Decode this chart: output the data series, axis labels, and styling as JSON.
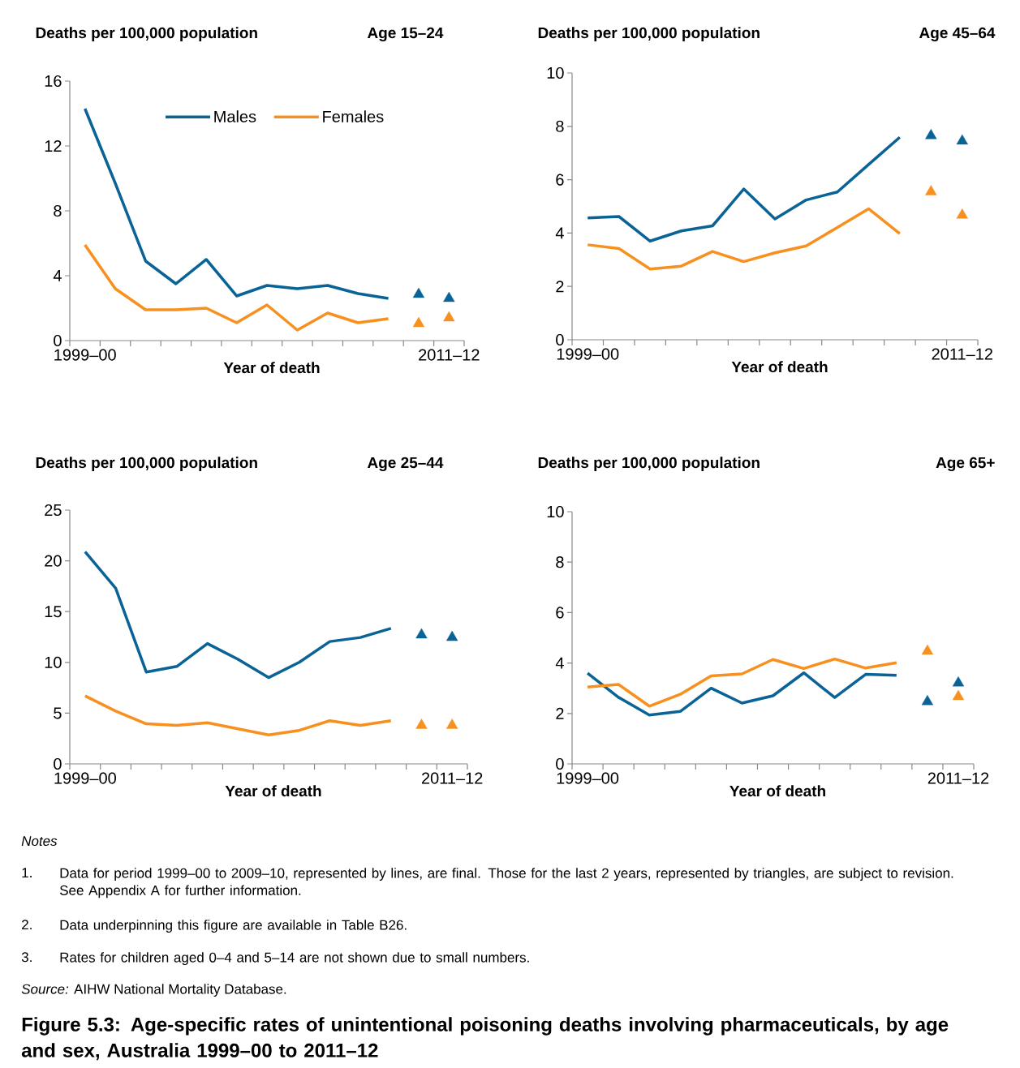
{
  "chart_data": [
    {
      "type": "line",
      "title": "Age 15–24",
      "ylabel": "Deaths per 100,000 population",
      "xlabel": "Year of death",
      "categories": [
        "1999–00",
        null,
        null,
        null,
        null,
        null,
        null,
        null,
        null,
        null,
        null,
        null,
        "2011–12"
      ],
      "ylim": [
        0,
        16
      ],
      "yticks": [
        0,
        4,
        8,
        12,
        16
      ],
      "legend": "top",
      "series": [
        {
          "name": "Males",
          "color": "#0a6396",
          "values": [
            14.3,
            9.7,
            4.9,
            3.5,
            5.0,
            2.75,
            3.4,
            3.2,
            3.4,
            2.9,
            2.6,
            null,
            null
          ]
        },
        {
          "name": "Females",
          "color": "#f7901e",
          "values": [
            5.9,
            3.2,
            1.9,
            1.9,
            2.0,
            1.1,
            2.2,
            0.65,
            1.7,
            1.1,
            1.35,
            null,
            null
          ]
        },
        {
          "type": "scatter",
          "marker": "triangle",
          "color": "#0a6396",
          "values": [
            null,
            null,
            null,
            null,
            null,
            null,
            null,
            null,
            null,
            null,
            null,
            2.85,
            2.6
          ]
        },
        {
          "type": "scatter",
          "marker": "triangle",
          "color": "#f7901e",
          "values": [
            null,
            null,
            null,
            null,
            null,
            null,
            null,
            null,
            null,
            null,
            null,
            1.05,
            1.4
          ]
        }
      ]
    },
    {
      "type": "line",
      "title": "Age 45–64",
      "ylabel": "Deaths per 100,000 population",
      "xlabel": "Year of death",
      "categories": [
        "1999–00",
        null,
        null,
        null,
        null,
        null,
        null,
        null,
        null,
        null,
        null,
        null,
        "2011–12"
      ],
      "ylim": [
        0,
        10
      ],
      "yticks": [
        0,
        2,
        4,
        6,
        8,
        10
      ],
      "series": [
        {
          "color": "#0a6396",
          "values": [
            4.57,
            4.62,
            3.7,
            4.08,
            4.27,
            5.65,
            4.53,
            5.24,
            5.54,
            6.57,
            7.59,
            null,
            null
          ]
        },
        {
          "color": "#f7901e",
          "values": [
            3.56,
            3.42,
            2.65,
            2.76,
            3.31,
            2.93,
            3.26,
            3.52,
            4.21,
            4.91,
            3.98,
            null,
            null
          ]
        },
        {
          "type": "scatter",
          "marker": "triangle",
          "color": "#0a6396",
          "values": [
            null,
            null,
            null,
            null,
            null,
            null,
            null,
            null,
            null,
            null,
            null,
            7.65,
            7.45
          ]
        },
        {
          "type": "scatter",
          "marker": "triangle",
          "color": "#f7901e",
          "values": [
            null,
            null,
            null,
            null,
            null,
            null,
            null,
            null,
            null,
            null,
            null,
            5.55,
            4.67
          ]
        }
      ]
    },
    {
      "type": "line",
      "title": "Age 25–44",
      "ylabel": "Deaths per 100,000 population",
      "xlabel": "Year of death",
      "categories": [
        "1999–00",
        null,
        null,
        null,
        null,
        null,
        null,
        null,
        null,
        null,
        null,
        null,
        "2011–12"
      ],
      "ylim": [
        0,
        25
      ],
      "yticks": [
        0,
        5,
        10,
        15,
        20,
        25
      ],
      "series": [
        {
          "color": "#0a6396",
          "values": [
            20.9,
            17.3,
            9.05,
            9.6,
            11.85,
            10.3,
            8.5,
            10.0,
            12.05,
            12.45,
            13.35,
            null,
            null
          ]
        },
        {
          "color": "#f7901e",
          "values": [
            6.7,
            5.2,
            3.95,
            3.8,
            4.05,
            3.45,
            2.85,
            3.3,
            4.25,
            3.8,
            4.25,
            null,
            null
          ]
        },
        {
          "type": "scatter",
          "marker": "triangle",
          "color": "#0a6396",
          "values": [
            null,
            null,
            null,
            null,
            null,
            null,
            null,
            null,
            null,
            null,
            null,
            12.7,
            12.45
          ]
        },
        {
          "type": "scatter",
          "marker": "triangle",
          "color": "#f7901e",
          "values": [
            null,
            null,
            null,
            null,
            null,
            null,
            null,
            null,
            null,
            null,
            null,
            3.8,
            3.8
          ]
        }
      ]
    },
    {
      "type": "line",
      "title": "Age 65+",
      "ylabel": "Deaths per 100,000 population",
      "xlabel": "Year of death",
      "categories": [
        "1999–00",
        null,
        null,
        null,
        null,
        null,
        null,
        null,
        null,
        null,
        null,
        null,
        "2011–12"
      ],
      "ylim": [
        0,
        10
      ],
      "yticks": [
        0,
        2,
        4,
        6,
        8,
        10
      ],
      "series": [
        {
          "color": "#0a6396",
          "values": [
            3.6,
            2.64,
            1.94,
            2.08,
            3.0,
            2.41,
            2.7,
            3.61,
            2.63,
            3.55,
            3.51,
            null,
            null
          ]
        },
        {
          "color": "#f7901e",
          "values": [
            3.05,
            3.15,
            2.29,
            2.76,
            3.49,
            3.57,
            4.14,
            3.78,
            4.16,
            3.8,
            4.01,
            null,
            null
          ]
        },
        {
          "type": "scatter",
          "marker": "triangle",
          "color": "#0a6396",
          "values": [
            null,
            null,
            null,
            null,
            null,
            null,
            null,
            null,
            null,
            null,
            null,
            2.47,
            3.21
          ]
        },
        {
          "type": "scatter",
          "marker": "triangle",
          "color": "#f7901e",
          "values": [
            null,
            null,
            null,
            null,
            null,
            null,
            null,
            null,
            null,
            null,
            null,
            4.47,
            2.67
          ]
        }
      ]
    },
    {
      "type": "other",
      "title": "Figure 5.3: Age-specific rates of unintentional poisoning deaths involving pharmaceuticals, by age and sex, Australia 1999–00 to 2011–12",
      "annotations": [
        "Notes",
        "1.",
        "Data for period 1999–00 to 2009–10, represented by lines, are final. Those for the last 2 years, represented by triangles, are subject to revision. See Appendix A for further information.",
        "2.",
        "Data underpinning this figure are available in Table B26.",
        "3.",
        "Rates for children aged 0–4 and 5–14 are not shown due to small numbers.",
        "*Source:* AIHW National Mortality Database."
      ]
    }
  ]
}
